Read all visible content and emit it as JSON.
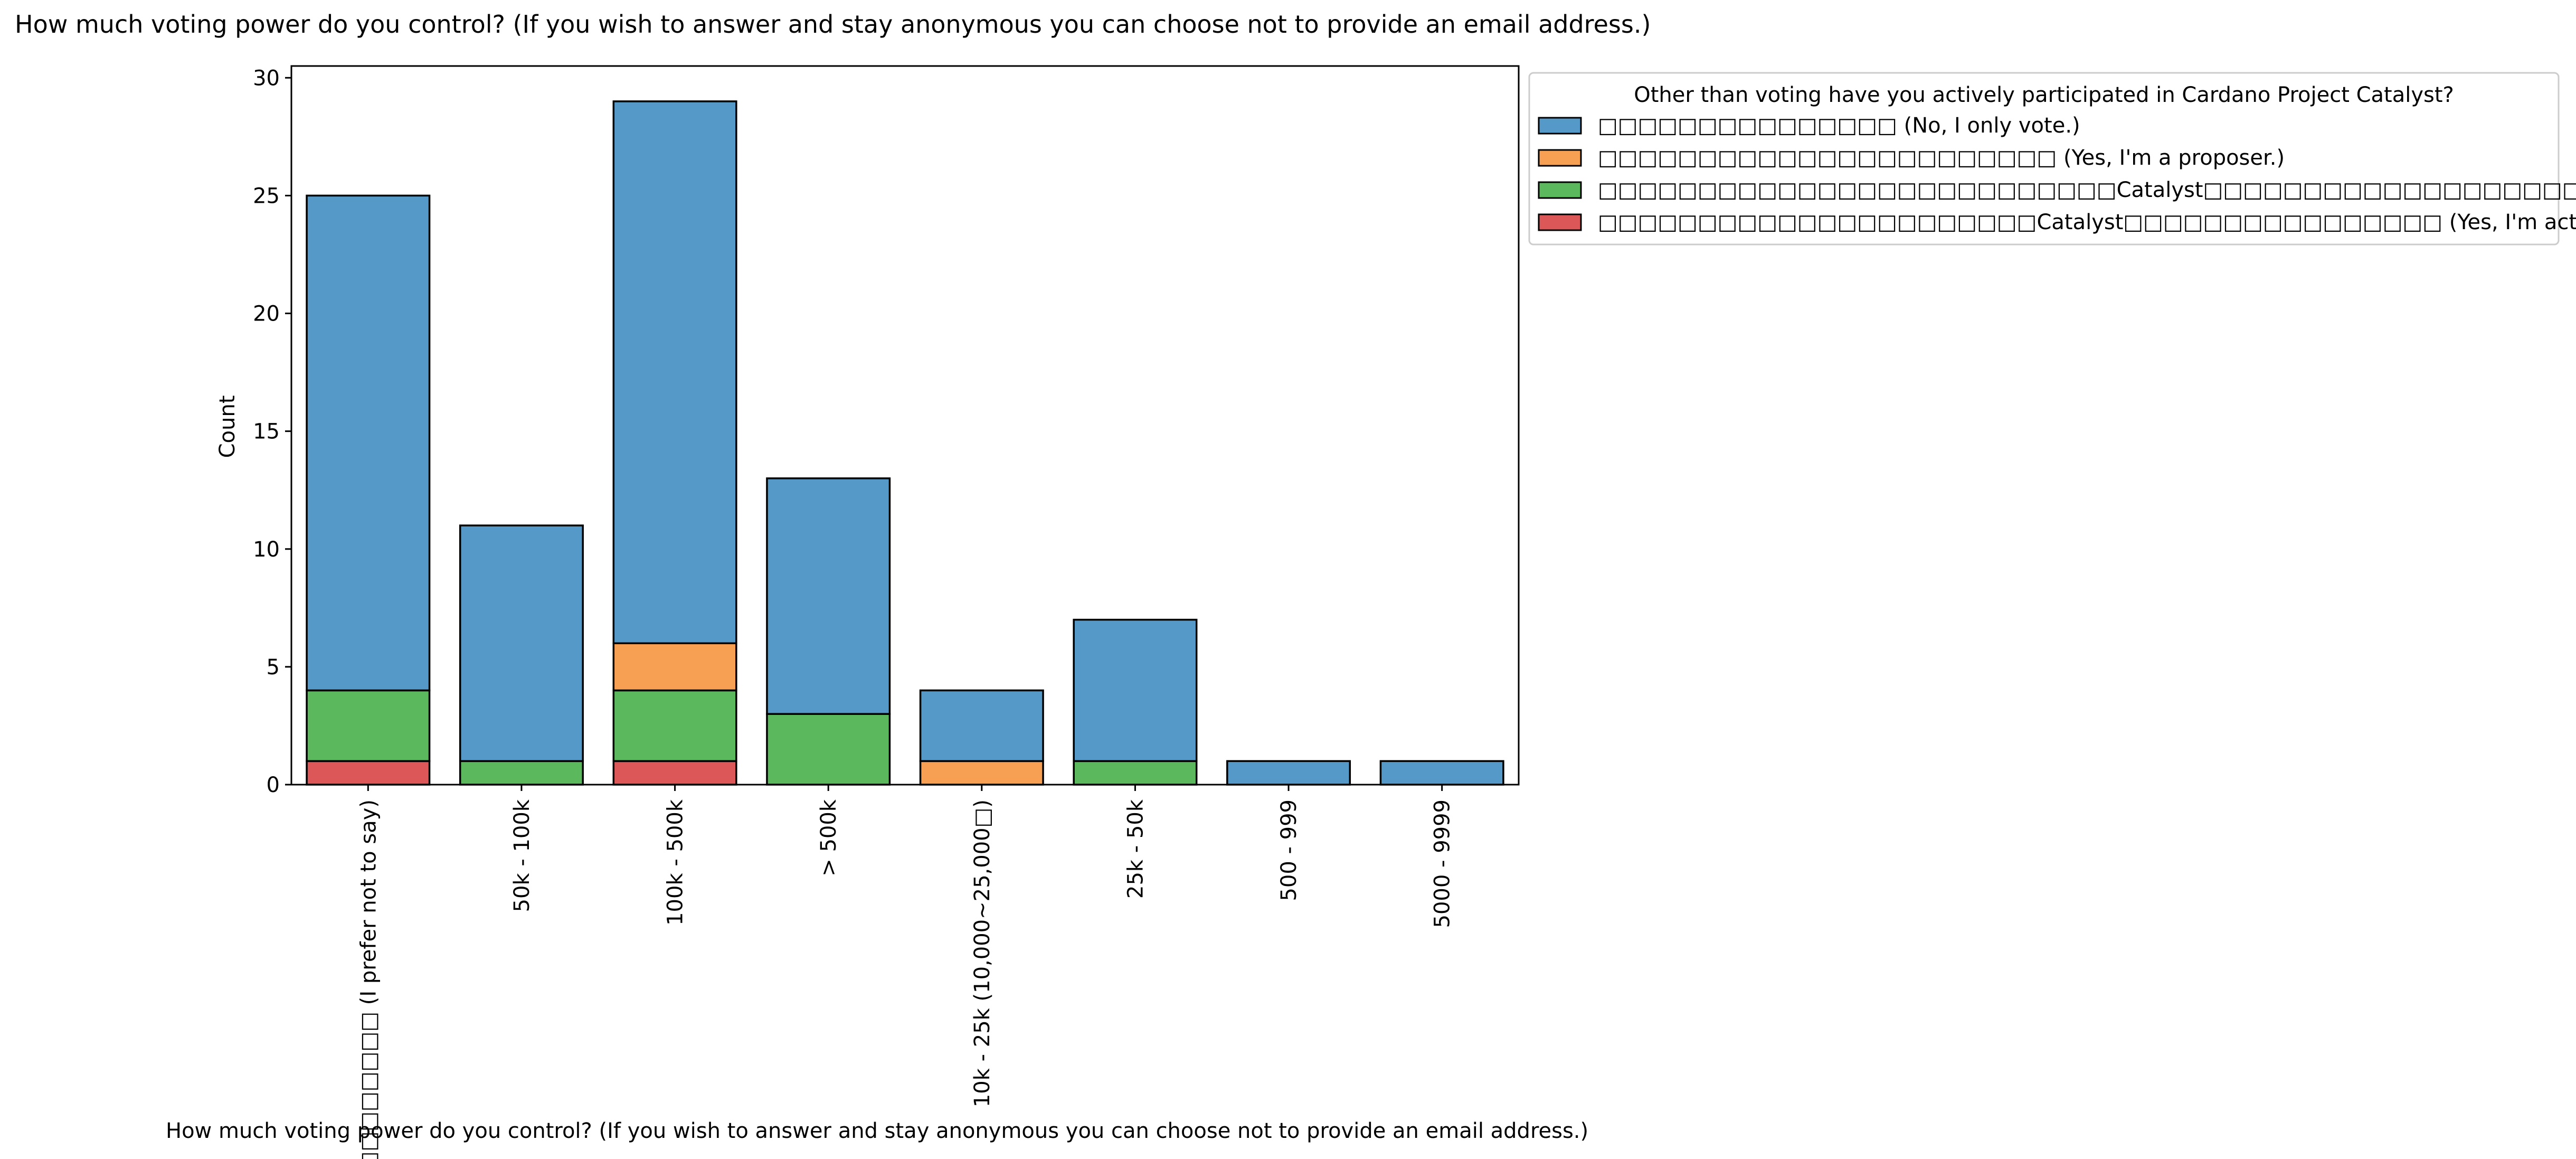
{
  "chart_data": {
    "type": "bar",
    "stacked": true,
    "title": "How much voting power do you control? (If you wish to answer and stay anonymous you can choose not to provide an email address.)",
    "xlabel": "How much voting power do you control? (If you wish to answer and stay anonymous you can choose not to provide an email address.)",
    "ylabel": "Count",
    "ylim": [
      0,
      30.5
    ],
    "yticks": [
      0,
      5,
      10,
      15,
      20,
      25,
      30
    ],
    "grid": false,
    "legend_placement": "outside-right-top",
    "legend_title": "Other than voting have you actively participated in Cardano Project Catalyst?",
    "categories": [
      "□□□□□□□□□ (I prefer not to say)",
      "50k - 100k",
      "100k - 500k",
      "> 500k",
      "10k - 25k (10,000~25,000□)",
      "25k - 50k",
      "500 - 999",
      "5000 - 9999"
    ],
    "series": [
      {
        "name": "□□□□□□□□□□□□□□□ (No, I only vote.)",
        "color": "#5499c7",
        "values": [
          21,
          10,
          23,
          10,
          3,
          6,
          1,
          1
        ]
      },
      {
        "name": "□□□□□□□□□□□□□□□□□□□□□□□ (Yes, I'm a proposer.)",
        "color": "#f7a053",
        "values": [
          0,
          0,
          2,
          0,
          1,
          0,
          0,
          0
        ]
      },
      {
        "name": "□□□□□□□□□□□□□□□□□□□□□□□□□□Catalyst□□□□□□□□□□□□□□□□□□□□□□□□□□□□□ (Yes, I'm a lurker in the community)",
        "color": "#5cb85c",
        "values": [
          3,
          1,
          3,
          3,
          0,
          1,
          0,
          0
        ]
      },
      {
        "name": "□□□□□□□□□□□□□□□□□□□□□□Catalyst□□□□□□□□□□□□□□□□ (Yes, I'm active in the community.)",
        "color": "#dc5858",
        "values": [
          1,
          0,
          1,
          0,
          0,
          0,
          0,
          0
        ]
      }
    ]
  }
}
